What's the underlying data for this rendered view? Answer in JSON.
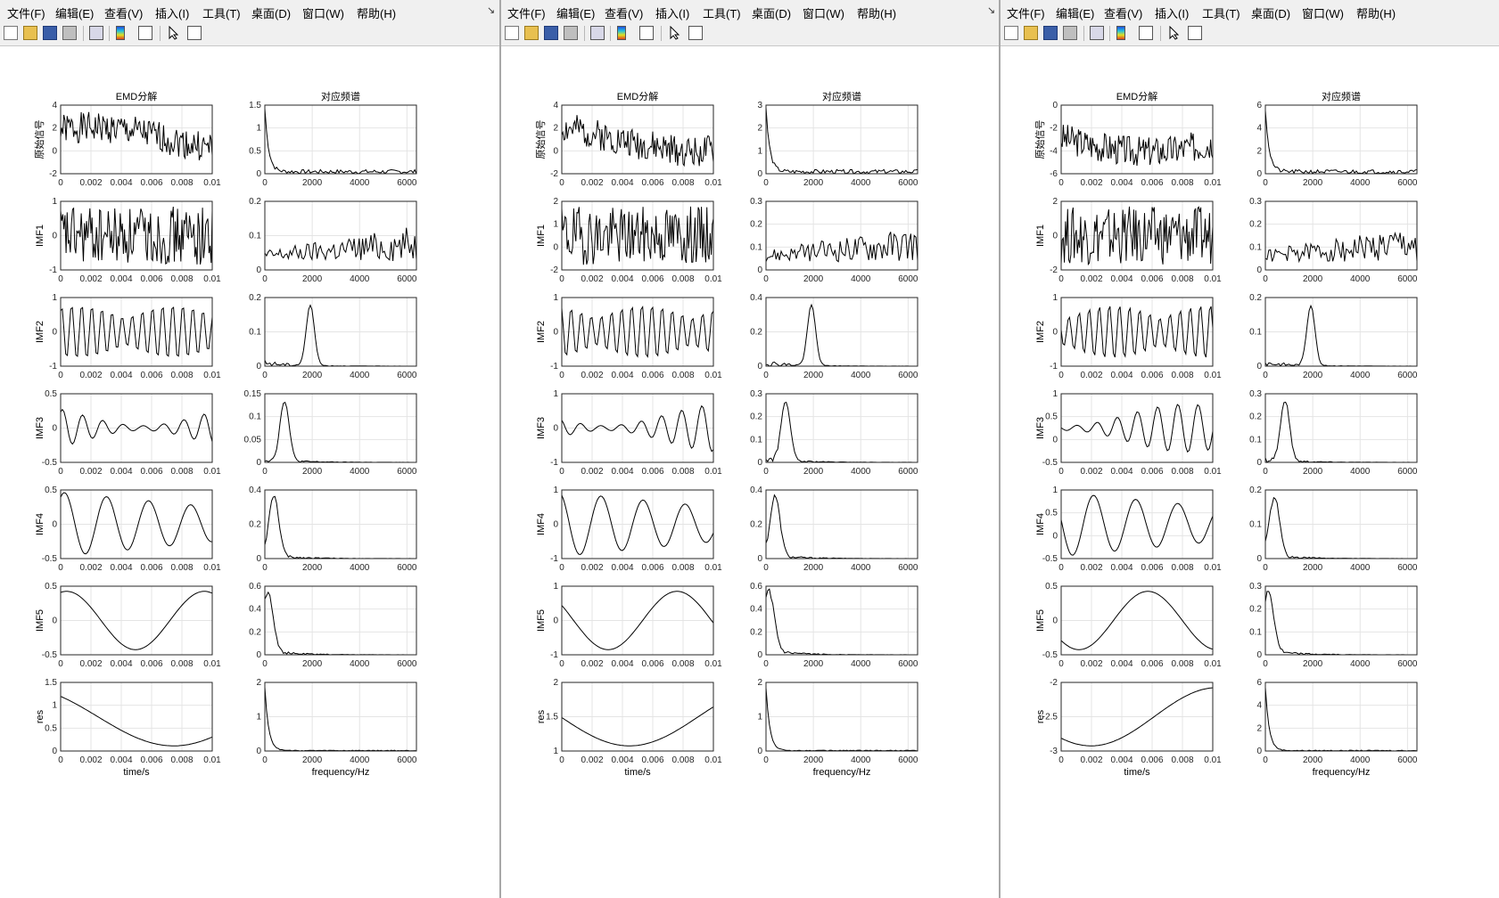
{
  "menu": [
    "文件(F)",
    "编辑(E)",
    "查看(V)",
    "插入(I)",
    "工具(T)",
    "桌面(D)",
    "窗口(W)",
    "帮助(H)"
  ],
  "dock_symbol": "↘",
  "toolbar_icons": [
    "new-file-icon",
    "open-folder-icon",
    "save-icon",
    "print-icon",
    "print-preview-icon",
    "colorbar-icon",
    "legend-icon",
    "pointer-icon",
    "property-inspector-icon"
  ],
  "column_titles": {
    "left": "EMD分解",
    "right": "对应频谱"
  },
  "row_labels": [
    "原始信号",
    "IMF1",
    "IMF2",
    "IMF3",
    "IMF4",
    "IMF5",
    "res"
  ],
  "xlabels": {
    "time": "time/s",
    "freq": "frequency/Hz"
  },
  "time_ticks": [
    "0",
    "0.002",
    "0.004",
    "0.006",
    "0.008",
    "0.01"
  ],
  "freq_ticks": [
    "0",
    "2000",
    "4000",
    "6000"
  ],
  "windows": [
    {
      "time_yticks": [
        [
          "-2",
          "0",
          "2",
          "4"
        ],
        [
          "-1",
          "0",
          "1"
        ],
        [
          "-1",
          "0",
          "1"
        ],
        [
          "-0.5",
          "0",
          "0.5"
        ],
        [
          "-0.5",
          "0",
          "0.5"
        ],
        [
          "-0.5",
          "0",
          "0.5"
        ],
        [
          "0",
          "0.5",
          "1",
          "1.5"
        ]
      ],
      "freq_yticks": [
        [
          "0",
          "0.5",
          "1",
          "1.5"
        ],
        [
          "0",
          "0.1",
          "0.2"
        ],
        [
          "0",
          "0.1",
          "0.2"
        ],
        [
          "0",
          "0.05",
          "0.1",
          "0.15"
        ],
        [
          "0",
          "0.2",
          "0.4"
        ],
        [
          "0",
          "0.2",
          "0.4",
          "0.6"
        ],
        [
          "0",
          "1",
          "2"
        ]
      ]
    },
    {
      "time_yticks": [
        [
          "-2",
          "0",
          "2",
          "4"
        ],
        [
          "-2",
          "0",
          "1",
          "2"
        ],
        [
          "-1",
          "0",
          "1"
        ],
        [
          "-1",
          "0",
          "1"
        ],
        [
          "-1",
          "0",
          "1"
        ],
        [
          "-1",
          "0",
          "1"
        ],
        [
          "1",
          "1.5",
          "2"
        ]
      ],
      "freq_yticks": [
        [
          "0",
          "1",
          "2",
          "3"
        ],
        [
          "0",
          "0.1",
          "0.2",
          "0.3"
        ],
        [
          "0",
          "0.2",
          "0.4"
        ],
        [
          "0",
          "0.1",
          "0.2",
          "0.3"
        ],
        [
          "0",
          "0.2",
          "0.4"
        ],
        [
          "0",
          "0.2",
          "0.4",
          "0.6"
        ],
        [
          "0",
          "1",
          "2"
        ]
      ]
    },
    {
      "time_yticks": [
        [
          "-6",
          "-4",
          "-2",
          "0"
        ],
        [
          "-2",
          "0",
          "2"
        ],
        [
          "-1",
          "0",
          "1"
        ],
        [
          "-0.5",
          "0",
          "0.5",
          "1"
        ],
        [
          "-0.5",
          "0",
          "0.5",
          "1"
        ],
        [
          "-0.5",
          "0",
          "0.5"
        ],
        [
          "-3",
          "-2.5",
          "-2"
        ]
      ],
      "freq_yticks": [
        [
          "0",
          "2",
          "4",
          "6"
        ],
        [
          "0",
          "0.1",
          "0.2",
          "0.3"
        ],
        [
          "0",
          "0.1",
          "0.2"
        ],
        [
          "0",
          "0.1",
          "0.2",
          "0.3"
        ],
        [
          "0",
          "0.1",
          "0.2"
        ],
        [
          "0",
          "0.1",
          "0.2",
          "0.3"
        ],
        [
          "0",
          "2",
          "4",
          "6"
        ]
      ]
    }
  ]
}
